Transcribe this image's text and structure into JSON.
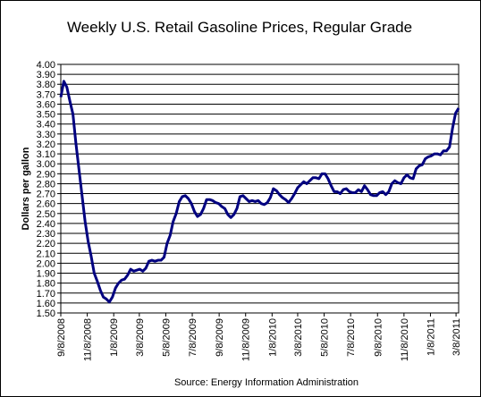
{
  "chart_data": {
    "type": "line",
    "title": "Weekly U.S. Retail Gasoline Prices, Regular Grade",
    "y_label": "Dollars per gallon",
    "source": "Source:  Energy Information Administration",
    "grid": true,
    "ylim": [
      1.5,
      4.0
    ],
    "yticks": [
      {
        "value": 1.5,
        "label": "1.50"
      },
      {
        "value": 1.6,
        "label": "1.60"
      },
      {
        "value": 1.7,
        "label": "1.70"
      },
      {
        "value": 1.8,
        "label": "1.80"
      },
      {
        "value": 1.9,
        "label": "1.90"
      },
      {
        "value": 2.0,
        "label": "2.00"
      },
      {
        "value": 2.1,
        "label": "2.10"
      },
      {
        "value": 2.2,
        "label": "2.20"
      },
      {
        "value": 2.3,
        "label": "2.30"
      },
      {
        "value": 2.4,
        "label": "2.40"
      },
      {
        "value": 2.5,
        "label": "2.50"
      },
      {
        "value": 2.6,
        "label": "2.60"
      },
      {
        "value": 2.7,
        "label": "2.70"
      },
      {
        "value": 2.8,
        "label": "2.80"
      },
      {
        "value": 2.9,
        "label": "2.90"
      },
      {
        "value": 3.0,
        "label": "3.00"
      },
      {
        "value": 3.1,
        "label": "3.10"
      },
      {
        "value": 3.2,
        "label": "3.20"
      },
      {
        "value": 3.3,
        "label": "3.30"
      },
      {
        "value": 3.4,
        "label": "3.40"
      },
      {
        "value": 3.5,
        "label": "3.50"
      },
      {
        "value": 3.6,
        "label": "3.60"
      },
      {
        "value": 3.7,
        "label": "3.70"
      },
      {
        "value": 3.8,
        "label": "3.80"
      },
      {
        "value": 3.9,
        "label": "3.90"
      },
      {
        "value": 4.0,
        "label": "4.00"
      }
    ],
    "xlim": [
      "2008-09-08",
      "2011-03-14"
    ],
    "xticks": [
      {
        "value": "2008-09-08",
        "label": "9/8/2008"
      },
      {
        "value": "2008-11-08",
        "label": "11/8/2008"
      },
      {
        "value": "2009-01-08",
        "label": "1/8/2009"
      },
      {
        "value": "2009-03-08",
        "label": "3/8/2009"
      },
      {
        "value": "2009-05-08",
        "label": "5/8/2009"
      },
      {
        "value": "2009-07-08",
        "label": "7/8/2009"
      },
      {
        "value": "2009-09-08",
        "label": "9/8/2009"
      },
      {
        "value": "2009-11-08",
        "label": "11/8/2009"
      },
      {
        "value": "2010-01-08",
        "label": "1/8/2010"
      },
      {
        "value": "2010-03-08",
        "label": "3/8/2010"
      },
      {
        "value": "2010-05-08",
        "label": "5/8/2010"
      },
      {
        "value": "2010-07-08",
        "label": "7/8/2010"
      },
      {
        "value": "2010-09-08",
        "label": "9/8/2010"
      },
      {
        "value": "2010-11-08",
        "label": "11/8/2010"
      },
      {
        "value": "2011-01-08",
        "label": "1/8/2011"
      },
      {
        "value": "2011-03-08",
        "label": "3/8/2011"
      }
    ],
    "x": [
      "2008-09-08",
      "2008-09-15",
      "2008-09-22",
      "2008-09-29",
      "2008-10-06",
      "2008-10-13",
      "2008-10-20",
      "2008-10-27",
      "2008-11-03",
      "2008-11-10",
      "2008-11-17",
      "2008-11-24",
      "2008-12-01",
      "2008-12-08",
      "2008-12-15",
      "2008-12-22",
      "2008-12-29",
      "2009-01-05",
      "2009-01-12",
      "2009-01-19",
      "2009-01-26",
      "2009-02-02",
      "2009-02-09",
      "2009-02-16",
      "2009-02-23",
      "2009-03-02",
      "2009-03-09",
      "2009-03-16",
      "2009-03-23",
      "2009-03-30",
      "2009-04-06",
      "2009-04-13",
      "2009-04-20",
      "2009-04-27",
      "2009-05-04",
      "2009-05-11",
      "2009-05-18",
      "2009-05-25",
      "2009-06-01",
      "2009-06-08",
      "2009-06-15",
      "2009-06-22",
      "2009-06-29",
      "2009-07-06",
      "2009-07-13",
      "2009-07-20",
      "2009-07-27",
      "2009-08-03",
      "2009-08-10",
      "2009-08-17",
      "2009-08-24",
      "2009-08-31",
      "2009-09-07",
      "2009-09-14",
      "2009-09-21",
      "2009-09-28",
      "2009-10-05",
      "2009-10-12",
      "2009-10-19",
      "2009-10-26",
      "2009-11-02",
      "2009-11-09",
      "2009-11-16",
      "2009-11-23",
      "2009-11-30",
      "2009-12-07",
      "2009-12-14",
      "2009-12-21",
      "2009-12-28",
      "2010-01-04",
      "2010-01-11",
      "2010-01-18",
      "2010-01-25",
      "2010-02-01",
      "2010-02-08",
      "2010-02-15",
      "2010-02-22",
      "2010-03-01",
      "2010-03-08",
      "2010-03-15",
      "2010-03-22",
      "2010-03-29",
      "2010-04-05",
      "2010-04-12",
      "2010-04-19",
      "2010-04-26",
      "2010-05-03",
      "2010-05-10",
      "2010-05-17",
      "2010-05-24",
      "2010-05-31",
      "2010-06-07",
      "2010-06-14",
      "2010-06-21",
      "2010-06-28",
      "2010-07-05",
      "2010-07-12",
      "2010-07-19",
      "2010-07-26",
      "2010-08-02",
      "2010-08-09",
      "2010-08-16",
      "2010-08-23",
      "2010-08-30",
      "2010-09-06",
      "2010-09-13",
      "2010-09-20",
      "2010-09-27",
      "2010-10-04",
      "2010-10-11",
      "2010-10-18",
      "2010-10-25",
      "2010-11-01",
      "2010-11-08",
      "2010-11-15",
      "2010-11-22",
      "2010-11-29",
      "2010-12-06",
      "2010-12-13",
      "2010-12-20",
      "2010-12-27",
      "2011-01-03",
      "2011-01-10",
      "2011-01-17",
      "2011-01-24",
      "2011-01-31",
      "2011-02-07",
      "2011-02-14",
      "2011-02-21",
      "2011-02-28",
      "2011-03-07",
      "2011-03-14"
    ],
    "series": [
      {
        "color": "#000080",
        "values": [
          3.67,
          3.83,
          3.77,
          3.63,
          3.5,
          3.2,
          2.94,
          2.68,
          2.42,
          2.22,
          2.07,
          1.9,
          1.82,
          1.73,
          1.66,
          1.64,
          1.61,
          1.66,
          1.75,
          1.8,
          1.83,
          1.84,
          1.88,
          1.94,
          1.92,
          1.93,
          1.94,
          1.92,
          1.95,
          2.02,
          2.03,
          2.02,
          2.03,
          2.03,
          2.06,
          2.2,
          2.28,
          2.42,
          2.5,
          2.62,
          2.67,
          2.68,
          2.65,
          2.6,
          2.52,
          2.47,
          2.49,
          2.55,
          2.64,
          2.64,
          2.63,
          2.61,
          2.6,
          2.57,
          2.55,
          2.49,
          2.46,
          2.49,
          2.55,
          2.67,
          2.68,
          2.65,
          2.62,
          2.63,
          2.62,
          2.63,
          2.6,
          2.59,
          2.61,
          2.66,
          2.75,
          2.73,
          2.69,
          2.66,
          2.64,
          2.61,
          2.65,
          2.7,
          2.76,
          2.79,
          2.82,
          2.8,
          2.83,
          2.86,
          2.86,
          2.85,
          2.9,
          2.9,
          2.85,
          2.78,
          2.72,
          2.72,
          2.7,
          2.74,
          2.75,
          2.72,
          2.71,
          2.71,
          2.74,
          2.72,
          2.78,
          2.74,
          2.69,
          2.68,
          2.68,
          2.71,
          2.72,
          2.69,
          2.72,
          2.8,
          2.83,
          2.81,
          2.8,
          2.86,
          2.89,
          2.86,
          2.85,
          2.95,
          2.98,
          2.99,
          3.05,
          3.07,
          3.08,
          3.1,
          3.1,
          3.09,
          3.13,
          3.13,
          3.17,
          3.36,
          3.51,
          3.56
        ]
      }
    ]
  }
}
